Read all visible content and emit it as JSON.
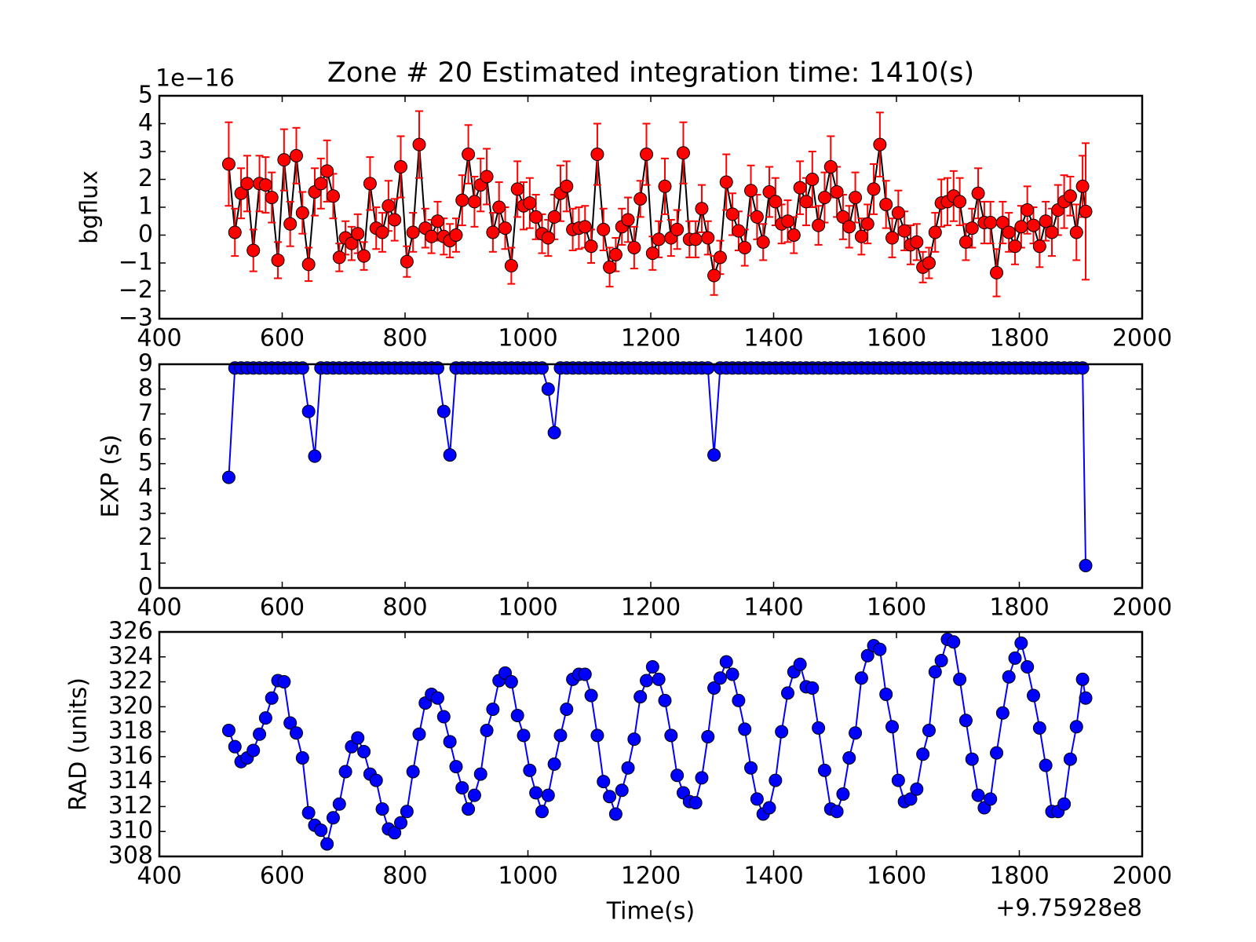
{
  "chart_data": [
    {
      "type": "errorbar",
      "title": "Zone # 20 Estimated integration time: 1410(s)",
      "y_label": "bgflux",
      "y_offset_label": "1e−16",
      "line_color": "#000000",
      "marker_color": "#ff0000",
      "error_color": "#ff0000",
      "xlim": [
        400,
        2000
      ],
      "xticks": [
        400,
        600,
        800,
        1000,
        1200,
        1400,
        1600,
        1800,
        2000
      ],
      "ylim": [
        -3,
        5
      ],
      "yticks": [
        {
          "value": -3,
          "label": "−3"
        },
        {
          "value": -2,
          "label": "−2"
        },
        {
          "value": -1,
          "label": "−1"
        },
        0,
        1,
        2,
        3,
        4,
        5
      ],
      "x": [
        513,
        523,
        533,
        543,
        553,
        563,
        573,
        583,
        593,
        603,
        613,
        623,
        633,
        643,
        653,
        663,
        673,
        683,
        693,
        703,
        713,
        723,
        733,
        743,
        753,
        763,
        773,
        783,
        793,
        803,
        813,
        823,
        833,
        843,
        853,
        863,
        873,
        883,
        893,
        903,
        913,
        923,
        933,
        943,
        953,
        963,
        973,
        983,
        993,
        1003,
        1013,
        1023,
        1033,
        1043,
        1053,
        1063,
        1073,
        1083,
        1093,
        1103,
        1113,
        1123,
        1133,
        1143,
        1153,
        1163,
        1173,
        1183,
        1193,
        1203,
        1213,
        1223,
        1233,
        1243,
        1253,
        1263,
        1273,
        1283,
        1293,
        1303,
        1313,
        1323,
        1333,
        1343,
        1353,
        1363,
        1373,
        1383,
        1393,
        1403,
        1413,
        1423,
        1433,
        1443,
        1453,
        1463,
        1473,
        1483,
        1493,
        1503,
        1513,
        1523,
        1533,
        1543,
        1553,
        1563,
        1573,
        1583,
        1593,
        1603,
        1613,
        1623,
        1633,
        1643,
        1653,
        1663,
        1673,
        1683,
        1693,
        1703,
        1713,
        1723,
        1733,
        1743,
        1753,
        1763,
        1773,
        1783,
        1793,
        1803,
        1813,
        1823,
        1833,
        1843,
        1853,
        1863,
        1873,
        1883,
        1893,
        1903,
        1908
      ],
      "values": [
        2.55,
        0.1,
        1.5,
        1.85,
        -0.55,
        1.85,
        1.8,
        1.35,
        -0.9,
        2.7,
        0.4,
        2.85,
        0.8,
        -1.05,
        1.55,
        1.85,
        2.3,
        1.4,
        -0.8,
        -0.1,
        -0.3,
        0.05,
        -0.75,
        1.85,
        0.25,
        0.1,
        1.05,
        0.55,
        2.45,
        -0.95,
        0.1,
        3.25,
        0.25,
        -0.05,
        0.5,
        -0.05,
        -0.2,
        0,
        1.25,
        2.9,
        1.2,
        1.8,
        2.1,
        0.1,
        1.0,
        0.25,
        -1.1,
        1.65,
        1.05,
        1.15,
        0.65,
        0.05,
        -0.1,
        0.65,
        1.5,
        1.75,
        0.2,
        0.25,
        0.3,
        -0.4,
        2.9,
        0.2,
        -1.15,
        -0.7,
        0.3,
        0.55,
        -0.45,
        1.3,
        2.9,
        -0.65,
        -0.15,
        1.75,
        -0.1,
        0.2,
        2.95,
        -0.15,
        -0.15,
        0.95,
        -0.1,
        -1.45,
        -0.8,
        1.9,
        0.75,
        0.15,
        -0.45,
        1.6,
        0.65,
        -0.25,
        1.55,
        1.2,
        0.4,
        0.5,
        0.0,
        1.7,
        1.2,
        2.0,
        0.35,
        1.35,
        2.45,
        1.55,
        0.65,
        0.3,
        1.35,
        -0.05,
        0.4,
        1.65,
        3.25,
        1.1,
        -0.1,
        0.8,
        0.15,
        -0.35,
        -0.25,
        -1.15,
        -1.0,
        0.1,
        1.15,
        1.2,
        1.4,
        1.2,
        -0.25,
        0.25,
        1.5,
        0.45,
        0.45,
        -1.35,
        0.45,
        0.1,
        -0.4,
        0.3,
        0.9,
        0.35,
        -0.4,
        0.5,
        0.1,
        0.9,
        1.2,
        1.4,
        0.1,
        1.75,
        0.85
      ],
      "errors": [
        1.5,
        0.85,
        0.9,
        1.0,
        0.75,
        1.0,
        1.0,
        0.9,
        0.65,
        1.1,
        0.8,
        1.0,
        0.75,
        0.6,
        0.85,
        0.9,
        1.1,
        0.8,
        0.5,
        0.6,
        0.6,
        0.7,
        0.5,
        0.95,
        0.75,
        0.7,
        0.9,
        0.75,
        1.1,
        0.55,
        0.7,
        1.2,
        0.7,
        0.6,
        0.7,
        0.65,
        0.6,
        0.6,
        0.9,
        1.05,
        0.9,
        0.95,
        1.0,
        0.7,
        0.9,
        0.75,
        0.65,
        1.0,
        0.85,
        0.9,
        0.8,
        0.7,
        0.65,
        0.8,
        1.0,
        0.9,
        0.75,
        0.75,
        0.75,
        0.6,
        1.1,
        0.75,
        0.7,
        0.6,
        0.65,
        0.8,
        0.75,
        0.65,
        1.1,
        0.6,
        0.65,
        1.0,
        0.65,
        0.7,
        1.1,
        0.65,
        0.65,
        0.85,
        0.6,
        0.7,
        0.6,
        1.0,
        0.75,
        0.7,
        0.65,
        0.9,
        0.8,
        0.65,
        0.9,
        0.85,
        0.7,
        0.75,
        0.65,
        0.95,
        0.85,
        1.0,
        0.7,
        0.9,
        1.1,
        0.9,
        0.8,
        0.75,
        0.9,
        0.65,
        0.7,
        0.9,
        1.15,
        0.85,
        0.7,
        0.8,
        0.7,
        0.7,
        0.65,
        0.55,
        0.55,
        0.7,
        0.85,
        0.85,
        0.9,
        0.85,
        0.65,
        0.7,
        0.9,
        0.75,
        0.75,
        0.85,
        0.75,
        0.7,
        0.65,
        0.75,
        0.85,
        0.65,
        0.75,
        0.7,
        0.85,
        0.9,
        0.95,
        0.7,
        1.0,
        1.1,
        2.45
      ]
    },
    {
      "type": "line",
      "y_label": "EXP (s)",
      "line_color": "#0000ff",
      "marker_color": "#0000ff",
      "xlim": [
        400,
        2000
      ],
      "xticks": [
        400,
        600,
        800,
        1000,
        1200,
        1400,
        1600,
        1800,
        2000
      ],
      "ylim": [
        0,
        9
      ],
      "yticks": [
        0,
        1,
        2,
        3,
        4,
        5,
        6,
        7,
        8,
        9
      ],
      "x": [
        513,
        523,
        533,
        543,
        553,
        563,
        573,
        583,
        593,
        603,
        613,
        623,
        633,
        643,
        653,
        663,
        673,
        683,
        693,
        703,
        713,
        723,
        733,
        743,
        753,
        763,
        773,
        783,
        793,
        803,
        813,
        823,
        833,
        843,
        853,
        863,
        873,
        883,
        893,
        903,
        913,
        923,
        933,
        943,
        953,
        963,
        973,
        983,
        993,
        1003,
        1013,
        1023,
        1033,
        1043,
        1053,
        1063,
        1073,
        1083,
        1093,
        1103,
        1113,
        1123,
        1133,
        1143,
        1153,
        1163,
        1173,
        1183,
        1193,
        1203,
        1213,
        1223,
        1233,
        1243,
        1253,
        1263,
        1273,
        1283,
        1293,
        1303,
        1313,
        1323,
        1333,
        1343,
        1353,
        1363,
        1373,
        1383,
        1393,
        1403,
        1413,
        1423,
        1433,
        1443,
        1453,
        1463,
        1473,
        1483,
        1493,
        1503,
        1513,
        1523,
        1533,
        1543,
        1553,
        1563,
        1573,
        1583,
        1593,
        1603,
        1613,
        1623,
        1633,
        1643,
        1653,
        1663,
        1673,
        1683,
        1693,
        1703,
        1713,
        1723,
        1733,
        1743,
        1753,
        1763,
        1773,
        1783,
        1793,
        1803,
        1813,
        1823,
        1833,
        1843,
        1853,
        1863,
        1873,
        1883,
        1893,
        1903,
        1908
      ],
      "values": [
        4.45,
        8.85,
        8.85,
        8.85,
        8.85,
        8.85,
        8.85,
        8.85,
        8.85,
        8.85,
        8.85,
        8.85,
        8.85,
        7.1,
        5.3,
        8.85,
        8.85,
        8.85,
        8.85,
        8.85,
        8.85,
        8.85,
        8.85,
        8.85,
        8.85,
        8.85,
        8.85,
        8.85,
        8.85,
        8.85,
        8.85,
        8.85,
        8.85,
        8.85,
        8.85,
        7.1,
        5.35,
        8.85,
        8.85,
        8.85,
        8.85,
        8.85,
        8.85,
        8.85,
        8.85,
        8.85,
        8.85,
        8.85,
        8.85,
        8.85,
        8.85,
        8.85,
        8.0,
        6.25,
        8.85,
        8.85,
        8.85,
        8.85,
        8.85,
        8.85,
        8.85,
        8.85,
        8.85,
        8.85,
        8.85,
        8.85,
        8.85,
        8.85,
        8.85,
        8.85,
        8.85,
        8.85,
        8.85,
        8.85,
        8.85,
        8.85,
        8.85,
        8.85,
        8.85,
        5.35,
        8.85,
        8.85,
        8.85,
        8.85,
        8.85,
        8.85,
        8.85,
        8.85,
        8.85,
        8.85,
        8.85,
        8.85,
        8.85,
        8.85,
        8.85,
        8.85,
        8.85,
        8.85,
        8.85,
        8.85,
        8.85,
        8.85,
        8.85,
        8.85,
        8.85,
        8.85,
        8.85,
        8.85,
        8.85,
        8.85,
        8.85,
        8.85,
        8.85,
        8.85,
        8.85,
        8.85,
        8.85,
        8.85,
        8.85,
        8.85,
        8.85,
        8.85,
        8.85,
        8.85,
        8.85,
        8.85,
        8.85,
        8.85,
        8.85,
        8.85,
        8.85,
        8.85,
        8.85,
        8.85,
        8.85,
        8.85,
        8.85,
        8.85,
        8.85,
        8.85,
        0.9
      ]
    },
    {
      "type": "line",
      "y_label": "RAD (units)",
      "x_label": "Time(s)",
      "x_offset_label": "+9.75928e8",
      "line_color": "#0000ff",
      "marker_color": "#0000ff",
      "xlim": [
        400,
        2000
      ],
      "xticks": [
        400,
        600,
        800,
        1000,
        1200,
        1400,
        1600,
        1800,
        2000
      ],
      "ylim": [
        308,
        326
      ],
      "yticks": [
        308,
        310,
        312,
        314,
        316,
        318,
        320,
        322,
        324,
        326
      ],
      "x": [
        513,
        523,
        533,
        543,
        553,
        563,
        573,
        583,
        593,
        603,
        613,
        623,
        633,
        643,
        653,
        663,
        673,
        683,
        693,
        703,
        713,
        723,
        733,
        743,
        753,
        763,
        773,
        783,
        793,
        803,
        813,
        823,
        833,
        843,
        853,
        863,
        873,
        883,
        893,
        903,
        913,
        923,
        933,
        943,
        953,
        963,
        973,
        983,
        993,
        1003,
        1013,
        1023,
        1033,
        1043,
        1053,
        1063,
        1073,
        1083,
        1093,
        1103,
        1113,
        1123,
        1133,
        1143,
        1153,
        1163,
        1173,
        1183,
        1193,
        1203,
        1213,
        1223,
        1233,
        1243,
        1253,
        1263,
        1273,
        1283,
        1293,
        1303,
        1313,
        1323,
        1333,
        1343,
        1353,
        1363,
        1373,
        1383,
        1393,
        1403,
        1413,
        1423,
        1433,
        1443,
        1453,
        1463,
        1473,
        1483,
        1493,
        1503,
        1513,
        1523,
        1533,
        1543,
        1553,
        1563,
        1573,
        1583,
        1593,
        1603,
        1613,
        1623,
        1633,
        1643,
        1653,
        1663,
        1673,
        1683,
        1693,
        1703,
        1713,
        1723,
        1733,
        1743,
        1753,
        1763,
        1773,
        1783,
        1793,
        1803,
        1813,
        1823,
        1833,
        1843,
        1853,
        1863,
        1873,
        1883,
        1893,
        1903,
        1908
      ],
      "values": [
        318.1,
        316.8,
        315.6,
        315.9,
        316.5,
        317.8,
        319.1,
        320.7,
        322.1,
        322.0,
        318.7,
        317.9,
        315.9,
        311.5,
        310.5,
        310.1,
        309.0,
        311.1,
        312.2,
        314.8,
        316.8,
        317.5,
        316.4,
        314.6,
        314.1,
        311.8,
        310.2,
        309.9,
        310.7,
        311.6,
        314.8,
        317.8,
        320.3,
        321.0,
        320.7,
        319.2,
        317.2,
        315.2,
        313.5,
        311.8,
        312.9,
        314.6,
        318.1,
        319.8,
        322.1,
        322.7,
        322.0,
        319.3,
        317.7,
        314.9,
        313.1,
        311.6,
        312.9,
        315.4,
        317.7,
        319.8,
        322.2,
        322.6,
        322.6,
        320.9,
        317.7,
        314.0,
        312.8,
        311.4,
        313.3,
        315.1,
        317.4,
        320.8,
        322.1,
        323.2,
        322.2,
        320.5,
        317.7,
        314.5,
        313.1,
        312.4,
        312.3,
        314.3,
        317.6,
        321.5,
        322.3,
        323.6,
        322.6,
        320.5,
        318.2,
        315.1,
        312.6,
        311.4,
        311.9,
        314.1,
        318.0,
        321.1,
        322.8,
        323.4,
        321.6,
        321.5,
        318.3,
        314.9,
        311.8,
        311.6,
        313.0,
        315.9,
        317.9,
        322.3,
        324.1,
        324.9,
        324.6,
        321.0,
        318.4,
        314.1,
        312.4,
        312.6,
        313.4,
        316.2,
        318.1,
        322.8,
        323.7,
        325.4,
        325.2,
        322.2,
        318.9,
        315.8,
        312.9,
        311.9,
        312.6,
        316.3,
        319.5,
        322.4,
        323.9,
        325.1,
        323.2,
        320.9,
        318.3,
        315.3,
        311.6,
        311.6,
        312.2,
        315.8,
        318.4,
        322.2,
        320.7
      ]
    }
  ]
}
